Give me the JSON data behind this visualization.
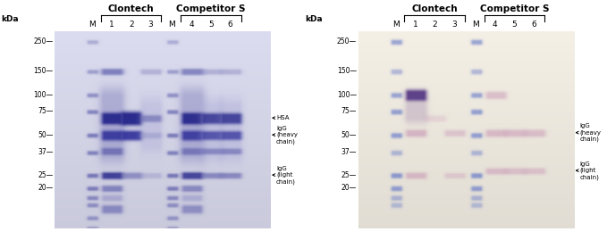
{
  "left_panel": {
    "bg_color": [
      220,
      220,
      240
    ],
    "gel_color": [
      200,
      205,
      230
    ],
    "title_clontech": "Clontech",
    "title_competitor": "Competitor S",
    "kda_labels": [
      "250",
      "150",
      "100",
      "75",
      "50",
      "37",
      "25",
      "20"
    ],
    "kda_values": [
      250,
      150,
      100,
      75,
      50,
      37,
      25,
      20
    ],
    "marker_band_kda": [
      250,
      150,
      100,
      75,
      50,
      37,
      25,
      20,
      17,
      15,
      12,
      10
    ],
    "annotation_arrows": [
      {
        "label": "HSA",
        "kda": 67,
        "multiline": false
      },
      {
        "label": "IgG\n(heavy\nchain)",
        "kda": 50,
        "multiline": true
      },
      {
        "label": "IgG\n(light\nchain)",
        "kda": 25,
        "multiline": true
      }
    ]
  },
  "right_panel": {
    "bg_color": [
      245,
      240,
      230
    ],
    "gel_color": [
      238,
      232,
      220
    ],
    "title_clontech": "Clontech",
    "title_competitor": "Competitor S",
    "kda_labels": [
      "250",
      "150",
      "100",
      "75",
      "50",
      "37",
      "25",
      "20"
    ],
    "kda_values": [
      250,
      150,
      100,
      75,
      50,
      37,
      25,
      20
    ],
    "annotation_arrows": [
      {
        "label": "IgG\n(heavy\nchain)",
        "kda": 50,
        "multiline": true
      },
      {
        "label": "IgG\n(light\nchain)",
        "kda": 25,
        "multiline": true
      }
    ]
  }
}
